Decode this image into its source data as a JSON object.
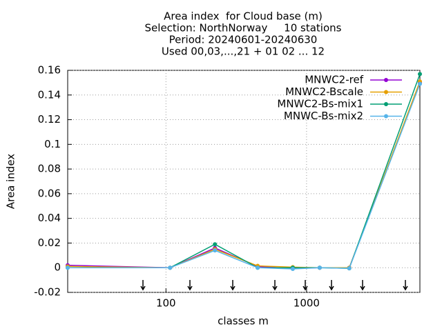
{
  "chart_data": {
    "type": "line",
    "title": [
      "Area index  for Cloud base (m)",
      "Selection: NorthNorway     10 stations",
      "Period: 20240601-20240630",
      "Used 00,03,...,21 + 01 02 ... 12"
    ],
    "xlabel": "classes m",
    "ylabel": "Area index",
    "x": [
      20,
      107,
      223,
      449,
      798,
      1240,
      2013,
      6400
    ],
    "series": [
      {
        "name": "MNWC2-ref",
        "color": "#9400d3",
        "values": [
          0.002,
          0,
          0.016,
          0.001,
          -0.0005,
          0,
          0,
          0.15
        ]
      },
      {
        "name": "MNWC2-Bscale",
        "color": "#e69f00",
        "values": [
          0.001,
          0,
          0.015,
          0.0015,
          0.0005,
          0,
          0,
          0.151
        ]
      },
      {
        "name": "MNWC2-Bs-mix1",
        "color": "#009e73",
        "values": [
          0,
          0,
          0.019,
          0,
          0,
          0,
          -0.0005,
          0.157
        ]
      },
      {
        "name": "MNWC-Bs-mix2",
        "color": "#56b4e9",
        "values": [
          0,
          0,
          0.014,
          0,
          -0.001,
          0,
          -0.0005,
          0.149
        ]
      }
    ],
    "xlim": [
      20,
      6400
    ],
    "xticks": [
      100,
      1000
    ],
    "xlog": true,
    "ylim": [
      -0.02,
      0.16
    ],
    "yticks": [
      -0.02,
      0,
      0.02,
      0.04,
      0.06,
      0.08,
      0.1,
      0.12,
      0.14,
      0.16
    ],
    "grid": true,
    "legend": "top-right"
  }
}
